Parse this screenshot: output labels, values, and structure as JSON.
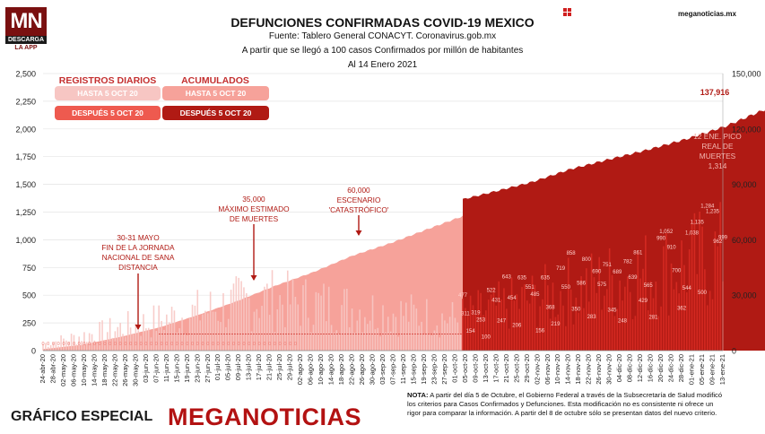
{
  "header": {
    "title": "DEFUNCIONES CONFIRMADAS COVID-19 MEXICO",
    "source": "Fuente: Tablero General CONACYT. Coronavirus.gob.mx",
    "note": "A partir que se llegó a 100 casos Confirmados por millón de habitantes",
    "date": "Al 14 Enero 2021",
    "site": "meganoticias.mx"
  },
  "logo": {
    "mark": "MN",
    "line1": "DESCARGA",
    "line2": "LA APP"
  },
  "footer": {
    "label": "GRÁFICO ESPECIAL",
    "brand": "MEGANOTICIAS",
    "nota_label": "NOTA:",
    "nota_text": "A partir del día 5 de Octubre, el Gobierno Federal a través de la Subsecretaría de Salud modificó los criterios para Casos Confirmados y Defunciones. Esta modificación no es consistente ni ofrece un rigor para comparar la información. A partir del 8 de octubre sólo se presentan datos del nuevo criterio."
  },
  "colors": {
    "daily_before": "#f7c6c3",
    "daily_after": "#c7211a",
    "cum_before": "#f6a29a",
    "cum_after": "#b01a14",
    "annot": "#b01a14",
    "axis_text": "#222222"
  },
  "chart_data": {
    "type": "bar+area",
    "legend": {
      "daily_header": "REGISTROS DIARIOS",
      "cum_header": "ACUMULADOS",
      "before": "HASTA 5 OCT 20",
      "after": "DESPUÉS 5 OCT 20"
    },
    "y_left": {
      "min": 0,
      "max": 2500,
      "ticks": [
        "0",
        "250",
        "500",
        "750",
        "1,000",
        "1,250",
        "1,500",
        "1,750",
        "2,000",
        "2,250",
        "2,500"
      ]
    },
    "y_right": {
      "min": 0,
      "max": 150000,
      "ticks": [
        "0",
        "30,000",
        "60,000",
        "90,000",
        "120,000",
        "150,000"
      ]
    },
    "x_tick_labels": [
      "24-abr-20",
      "28-abr-20",
      "02-may-20",
      "06-may-20",
      "10-may-20",
      "14-may-20",
      "18-may-20",
      "22-may-20",
      "26-may-20",
      "30-may-20",
      "03-jun-20",
      "07-jun-20",
      "11-jun-20",
      "15-jun-20",
      "19-jun-20",
      "23-jun-20",
      "27-jun-20",
      "01-jul-20",
      "05-jul-20",
      "09-jul-20",
      "13-jul-20",
      "17-jul-20",
      "21-jul-20",
      "25-jul-20",
      "29-jul-20",
      "02-ago-20",
      "06-ago-20",
      "10-ago-20",
      "14-ago-20",
      "18-ago-20",
      "22-ago-20",
      "26-ago-20",
      "30-ago-20",
      "03-sep-20",
      "07-sep-20",
      "11-sep-20",
      "15-sep-20",
      "19-sep-20",
      "23-sep-20",
      "27-sep-20",
      "01-oct-20",
      "05-oct-20",
      "09-oct-20",
      "13-oct-20",
      "17-oct-20",
      "21-oct-20",
      "25-oct-20",
      "29-oct-20",
      "02-nov-20",
      "06-nov-20",
      "10-nov-20",
      "14-nov-20",
      "18-nov-20",
      "22-nov-20",
      "26-nov-20",
      "30-nov-20",
      "04-dic-20",
      "08-dic-20",
      "12-dic-20",
      "16-dic-20",
      "20-dic-20",
      "24-dic-20",
      "28-dic-20",
      "01-ene-21",
      "05-ene-21",
      "09-ene-21",
      "13-ene-21"
    ],
    "cumulative_final_label": "137,916",
    "cumulative": {
      "before": [
        [
          0,
          800
        ],
        [
          15,
          3100
        ],
        [
          30,
          7400
        ],
        [
          45,
          12500
        ],
        [
          60,
          19200
        ],
        [
          75,
          26600
        ],
        [
          90,
          35000
        ],
        [
          105,
          42500
        ],
        [
          120,
          51300
        ],
        [
          135,
          58200
        ],
        [
          150,
          66100
        ],
        [
          163,
          72800
        ]
      ],
      "after": [
        [
          163,
          81900
        ],
        [
          175,
          86000
        ],
        [
          190,
          91300
        ],
        [
          205,
          98300
        ],
        [
          220,
          103600
        ],
        [
          235,
          108800
        ],
        [
          250,
          114600
        ],
        [
          265,
          121400
        ],
        [
          275,
          127400
        ],
        [
          285,
          133200
        ],
        [
          293,
          137916
        ]
      ]
    },
    "daily_after_labels": [
      {
        "day": 163,
        "text": "477"
      },
      {
        "day": 164,
        "text": "311"
      },
      {
        "day": 166,
        "text": "154"
      },
      {
        "day": 168,
        "text": "319"
      },
      {
        "day": 170,
        "text": "253"
      },
      {
        "day": 172,
        "text": "100"
      },
      {
        "day": 174,
        "text": "522"
      },
      {
        "day": 176,
        "text": "431"
      },
      {
        "day": 178,
        "text": "247"
      },
      {
        "day": 180,
        "text": "643"
      },
      {
        "day": 182,
        "text": "454"
      },
      {
        "day": 184,
        "text": "206"
      },
      {
        "day": 186,
        "text": "635"
      },
      {
        "day": 188,
        "text": "551"
      },
      {
        "day": 190,
        "text": "485"
      },
      {
        "day": 192,
        "text": "156"
      },
      {
        "day": 194,
        "text": "635"
      },
      {
        "day": 196,
        "text": "368"
      },
      {
        "day": 198,
        "text": "219"
      },
      {
        "day": 200,
        "text": "719"
      },
      {
        "day": 202,
        "text": "550"
      },
      {
        "day": 204,
        "text": "858"
      },
      {
        "day": 206,
        "text": "350"
      },
      {
        "day": 208,
        "text": "586"
      },
      {
        "day": 210,
        "text": "800"
      },
      {
        "day": 212,
        "text": "283"
      },
      {
        "day": 214,
        "text": "690"
      },
      {
        "day": 216,
        "text": "575"
      },
      {
        "day": 218,
        "text": "751"
      },
      {
        "day": 220,
        "text": "345"
      },
      {
        "day": 222,
        "text": "689"
      },
      {
        "day": 224,
        "text": "248"
      },
      {
        "day": 226,
        "text": "782"
      },
      {
        "day": 228,
        "text": "639"
      },
      {
        "day": 230,
        "text": "861"
      },
      {
        "day": 232,
        "text": "429"
      },
      {
        "day": 234,
        "text": "565"
      },
      {
        "day": 236,
        "text": "281"
      },
      {
        "day": 238,
        "text": "990"
      },
      {
        "day": 240,
        "text": "1,052"
      },
      {
        "day": 242,
        "text": "910"
      },
      {
        "day": 244,
        "text": "700"
      },
      {
        "day": 246,
        "text": "362"
      },
      {
        "day": 248,
        "text": "544"
      },
      {
        "day": 250,
        "text": "1,038"
      },
      {
        "day": 252,
        "text": "1,135"
      },
      {
        "day": 254,
        "text": "500"
      },
      {
        "day": 256,
        "text": "1,284"
      },
      {
        "day": 258,
        "text": "1,235"
      },
      {
        "day": 260,
        "text": "962"
      },
      {
        "day": 262,
        "text": "999"
      }
    ],
    "annotations": [
      {
        "lines": [
          "30-31 MAYO",
          "FIN DE LA JORNADA",
          "NACIONAL DE SANA",
          "DISTANCIA"
        ]
      },
      {
        "lines": [
          "35,000",
          "MÁXIMO ESTIMADO",
          "DE MUERTES"
        ]
      },
      {
        "lines": [
          "60,000",
          "ESCENARIO",
          "'CATASTRÓFICO'"
        ]
      },
      {
        "lines": [
          "12 ENE. PICO",
          "REAL DE",
          "MUERTES",
          "1,314"
        ]
      }
    ]
  }
}
